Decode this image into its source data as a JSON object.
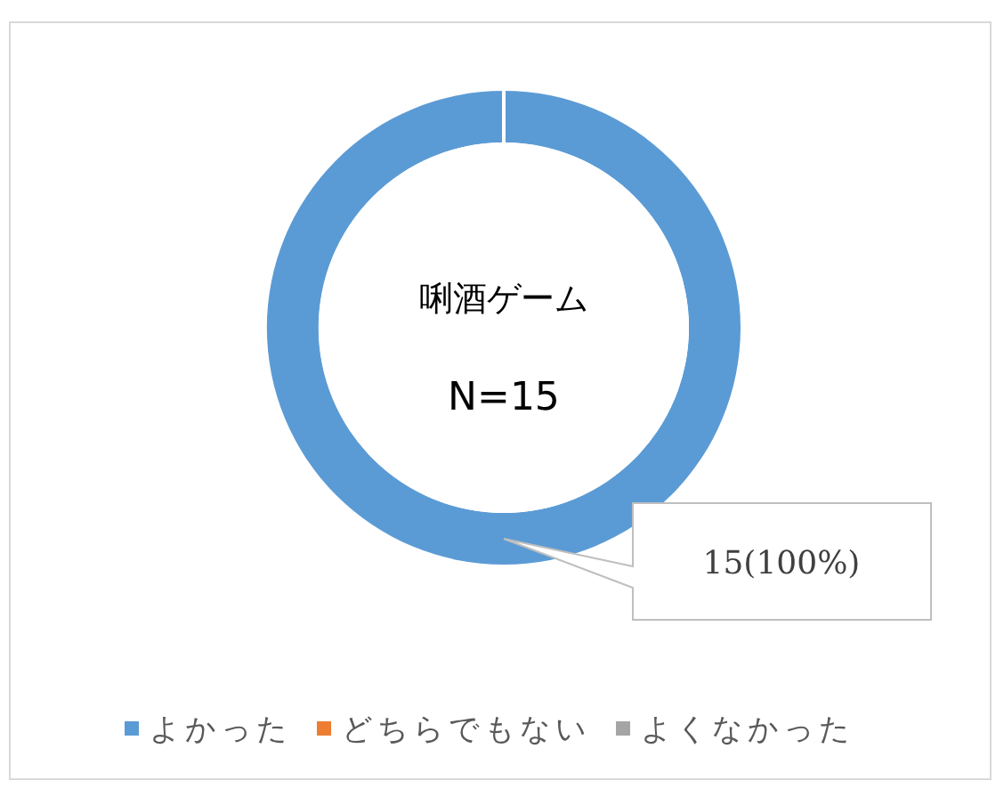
{
  "chart_data": {
    "type": "donut",
    "title": "唎酒ゲーム",
    "subtitle": "N=15",
    "categories": [
      "よかった",
      "どちらでもない",
      "よくなかった"
    ],
    "values": [
      15,
      0,
      0
    ],
    "colors": [
      "#5b9bd5",
      "#ed7d31",
      "#a5a5a5"
    ],
    "value_labels": [
      "15(100%)",
      null,
      null
    ],
    "legend": "bottom"
  }
}
